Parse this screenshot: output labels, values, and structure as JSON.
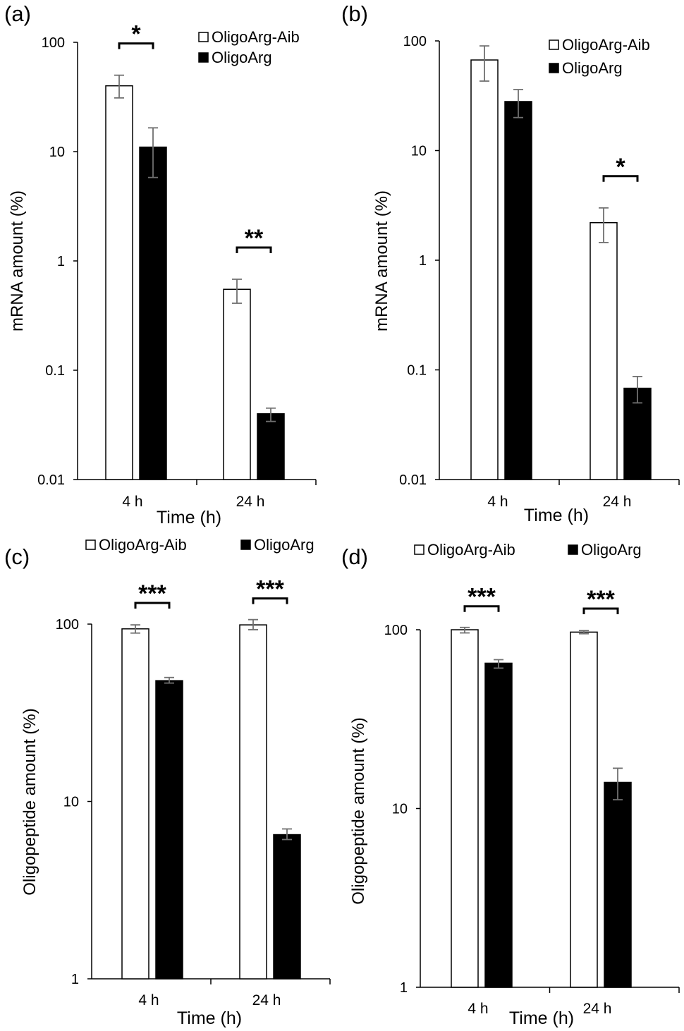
{
  "legend": {
    "series_a": "OligoArg-Aib",
    "series_b": "OligoArg"
  },
  "colors": {
    "series_a_fill": "#ffffff",
    "series_b_fill": "#000000",
    "error_bar": "#707070",
    "axis": "#000000"
  },
  "chart_data": [
    {
      "panel_label": "(a)",
      "type": "bar",
      "scale": "log",
      "ylabel": "mRNA amount (%)",
      "xlabel": "Time (h)",
      "categories": [
        "4 h",
        "24 h"
      ],
      "ylim": [
        0.01,
        100
      ],
      "yticks": [
        "0.01",
        "0.1",
        "1",
        "10",
        "100"
      ],
      "legend_position": "top-right",
      "series": [
        {
          "name": "OligoArg-Aib",
          "values": [
            40,
            0.55
          ],
          "err_low": [
            31,
            0.41
          ],
          "err_high": [
            50,
            0.68
          ]
        },
        {
          "name": "OligoArg",
          "values": [
            11,
            0.04
          ],
          "err_low": [
            5.8,
            0.034
          ],
          "err_high": [
            16.5,
            0.045
          ]
        }
      ],
      "significance": [
        "*",
        "**"
      ]
    },
    {
      "panel_label": "(b)",
      "type": "bar",
      "scale": "log",
      "ylabel": "mRNA amount (%)",
      "xlabel": "Time (h)",
      "categories": [
        "4 h",
        "24 h"
      ],
      "ylim": [
        0.01,
        100
      ],
      "yticks": [
        "0.01",
        "0.1",
        "1",
        "10",
        "100"
      ],
      "legend_position": "top-right",
      "series": [
        {
          "name": "OligoArg-Aib",
          "values": [
            67,
            2.2
          ],
          "err_low": [
            43,
            1.45
          ],
          "err_high": [
            90,
            3.0
          ]
        },
        {
          "name": "OligoArg",
          "values": [
            28,
            0.068
          ],
          "err_low": [
            20,
            0.05
          ],
          "err_high": [
            36,
            0.087
          ]
        }
      ],
      "significance": [
        "",
        "*"
      ]
    },
    {
      "panel_label": "(c)",
      "type": "bar",
      "scale": "log",
      "ylabel": "Oligopeptide amount (%)",
      "xlabel": "Time (h)",
      "categories": [
        "4 h",
        "24 h"
      ],
      "ylim": [
        1,
        100
      ],
      "yticks": [
        "1",
        "10",
        "100"
      ],
      "legend_position": "top",
      "series": [
        {
          "name": "OligoArg-Aib",
          "values": [
            94,
            99
          ],
          "err_low": [
            89,
            93
          ],
          "err_high": [
            99,
            106
          ]
        },
        {
          "name": "OligoArg",
          "values": [
            48,
            6.5
          ],
          "err_low": [
            46.5,
            6.1
          ],
          "err_high": [
            50,
            7.0
          ]
        }
      ],
      "significance": [
        "***",
        "***"
      ]
    },
    {
      "panel_label": "(d)",
      "type": "bar",
      "scale": "log",
      "ylabel": "Oligopeptide amount (%)",
      "xlabel": "Time (h)",
      "categories": [
        "4 h",
        "24 h"
      ],
      "ylim": [
        1,
        100
      ],
      "yticks": [
        "1",
        "10",
        "100"
      ],
      "legend_position": "top",
      "series": [
        {
          "name": "OligoArg-Aib",
          "values": [
            100,
            97
          ],
          "err_low": [
            96,
            95
          ],
          "err_high": [
            103,
            99
          ]
        },
        {
          "name": "OligoArg",
          "values": [
            65,
            14
          ],
          "err_low": [
            61,
            11.2
          ],
          "err_high": [
            68,
            16.8
          ]
        }
      ],
      "significance": [
        "***",
        "***"
      ]
    }
  ]
}
